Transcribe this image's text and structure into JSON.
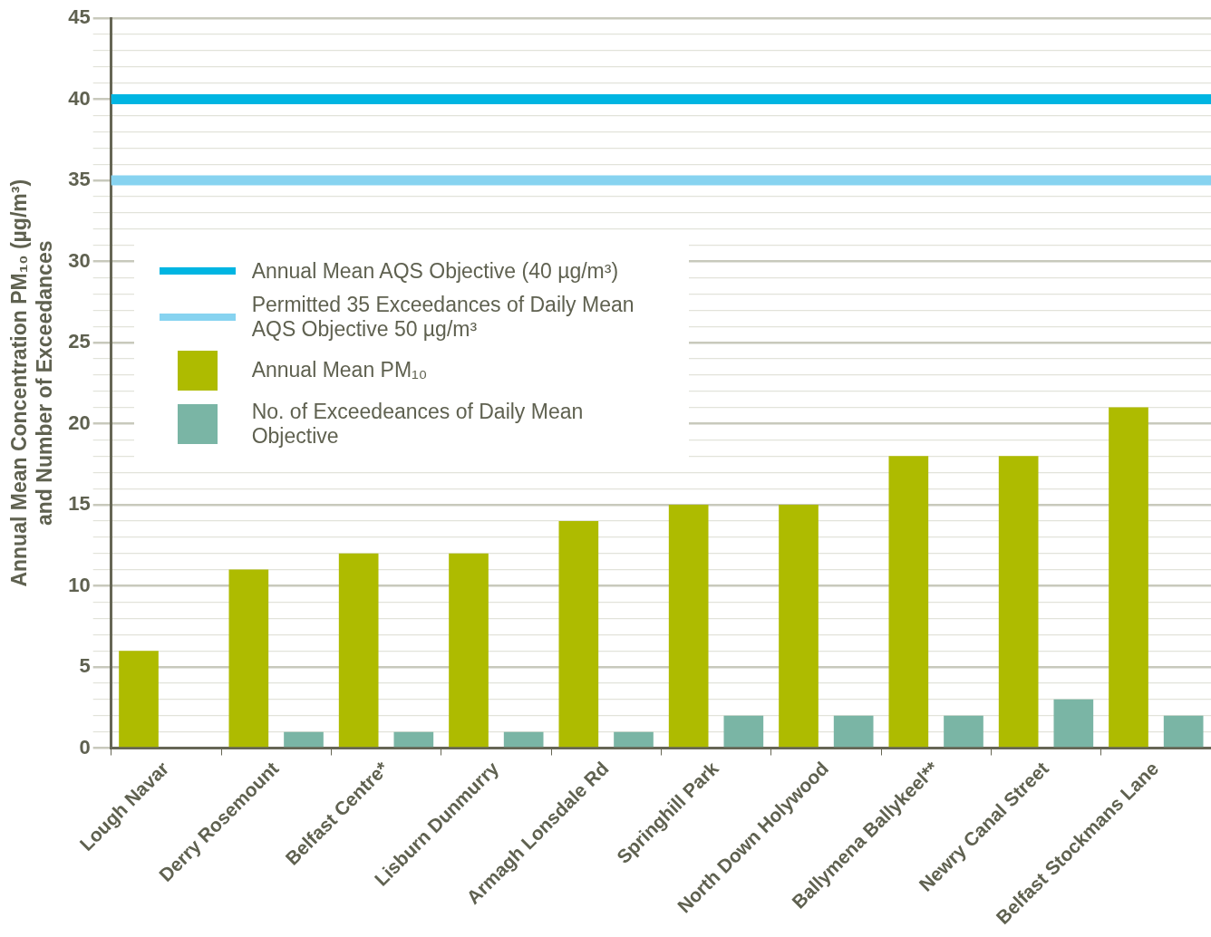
{
  "chart_data": {
    "type": "bar",
    "ylabel": "Annual Mean Concentration PM₁₀ (µg/m³)\nand Number of Exceedances",
    "categories": [
      "Lough Navar",
      "Derry Rosemount",
      "Belfast Centre*",
      "Lisburn Dunmurry",
      "Armagh Lonsdale Rd",
      "Springhill Park",
      "North Down Holywood",
      "Ballymena Ballykeel**",
      "Newry Canal Street",
      "Belfast Stockmans Lane"
    ],
    "series": [
      {
        "name": "Annual Mean PM₁₀",
        "color": "#aebb00",
        "values": [
          6,
          11,
          12,
          12,
          14,
          15,
          15,
          18,
          18,
          21
        ]
      },
      {
        "name": "No. of Exceedeances of Daily Mean Objective",
        "color": "#7ab5a5",
        "values": [
          0,
          1,
          1,
          1,
          1,
          2,
          2,
          2,
          3,
          2
        ]
      }
    ],
    "ylim": [
      0,
      45
    ],
    "yticks": [
      0,
      {
        "value": 1,
        "label": null
      },
      {
        "value": 2,
        "label": null
      },
      {
        "value": 3,
        "label": null
      },
      {
        "value": 4,
        "label": null
      },
      5,
      {
        "value": 6,
        "label": null
      },
      {
        "value": 7,
        "label": null
      },
      {
        "value": 8,
        "label": null
      },
      {
        "value": 9,
        "label": null
      },
      10,
      {
        "value": 11,
        "label": null
      },
      {
        "value": 12,
        "label": null
      },
      {
        "value": 13,
        "label": null
      },
      {
        "value": 14,
        "label": null
      },
      15,
      {
        "value": 16,
        "label": null
      },
      {
        "value": 17,
        "label": null
      },
      {
        "value": 18,
        "label": null
      },
      {
        "value": 19,
        "label": null
      },
      20,
      {
        "value": 21,
        "label": null
      },
      {
        "value": 22,
        "label": null
      },
      {
        "value": 23,
        "label": null
      },
      {
        "value": 24,
        "label": null
      },
      25,
      {
        "value": 26,
        "label": null
      },
      {
        "value": 27,
        "label": null
      },
      {
        "value": 28,
        "label": null
      },
      {
        "value": 29,
        "label": null
      },
      30,
      {
        "value": 31,
        "label": null
      },
      {
        "value": 32,
        "label": null
      },
      {
        "value": 33,
        "label": null
      },
      {
        "value": 34,
        "label": null
      },
      35,
      {
        "value": 36,
        "label": null
      },
      {
        "value": 37,
        "label": null
      },
      {
        "value": 38,
        "label": null
      },
      {
        "value": 39,
        "label": null
      },
      40,
      {
        "value": 41,
        "label": null
      },
      {
        "value": 42,
        "label": null
      },
      {
        "value": 43,
        "label": null
      },
      {
        "value": 44,
        "label": null
      },
      45
    ],
    "ref_lines": [
      {
        "axis": "y",
        "value": 40,
        "label": "Annual Mean AQS Objective (40 µg/m³)",
        "color": "#00b5e2"
      },
      {
        "axis": "y",
        "value": 35,
        "label": "Permitted 35 Exceedances of Daily Mean AQS Objective 50 µg/m³",
        "color": "#87d3f0"
      }
    ],
    "grid": "y",
    "legend": "top left"
  }
}
